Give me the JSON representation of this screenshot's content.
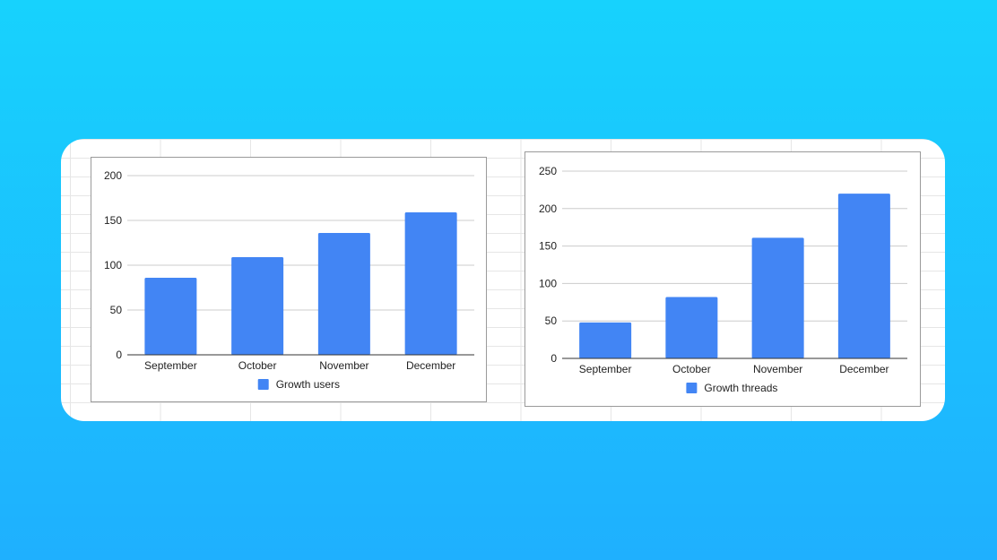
{
  "chart_data": [
    {
      "type": "bar",
      "categories": [
        "September",
        "October",
        "November",
        "December"
      ],
      "series": [
        {
          "name": "Growth users",
          "values": [
            86,
            109,
            136,
            159
          ],
          "color": "#4285f4"
        }
      ],
      "ylim": [
        0,
        200
      ],
      "yticks": [
        0,
        50,
        100,
        150,
        200
      ],
      "grid": true,
      "legend": "bottom"
    },
    {
      "type": "bar",
      "categories": [
        "September",
        "October",
        "November",
        "December"
      ],
      "series": [
        {
          "name": "Growth threads",
          "values": [
            48,
            82,
            161,
            220
          ],
          "color": "#4285f4"
        }
      ],
      "ylim": [
        0,
        250
      ],
      "yticks": [
        0,
        50,
        100,
        150,
        200,
        250
      ],
      "grid": true,
      "legend": "bottom"
    }
  ]
}
